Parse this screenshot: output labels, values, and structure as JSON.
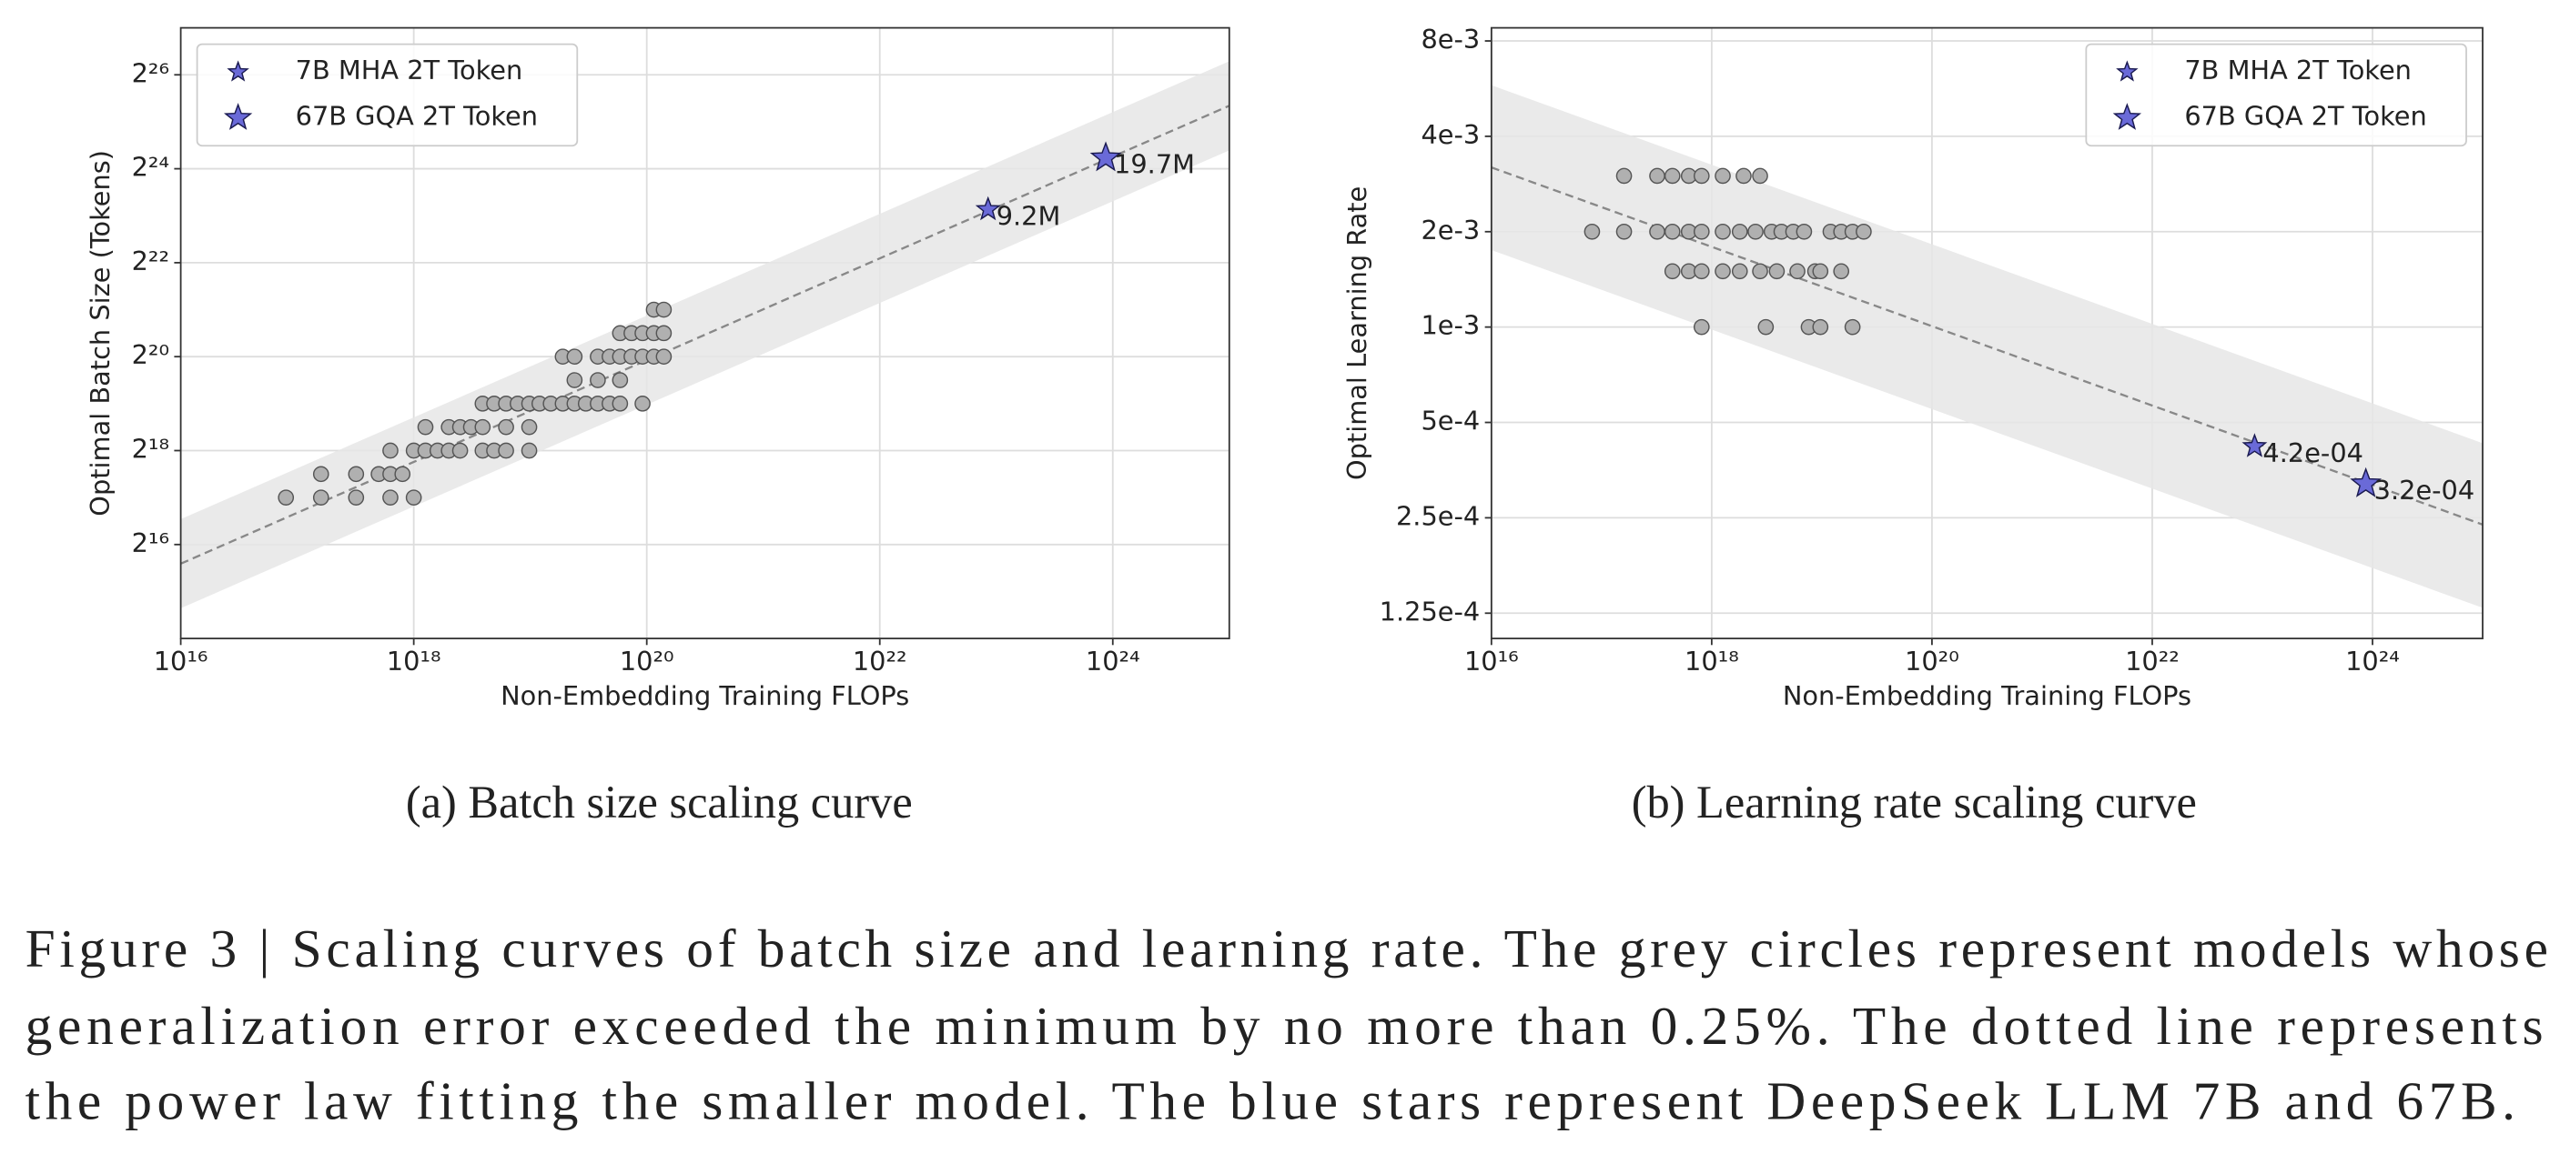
{
  "chart_data": [
    {
      "type": "scatter",
      "caption": "(a) Batch size scaling curve",
      "xlabel": "Non-Embedding Training FLOPs",
      "ylabel": "Optimal Batch Size (Tokens)",
      "log_x": true,
      "log_y": true,
      "grid": true,
      "legend": "upper left",
      "xlim": [
        1e+16,
        1e+25
      ],
      "ylim": [
        16384,
        134217728
      ],
      "xticks": [
        {
          "value": 1e+16,
          "label": "10¹⁶"
        },
        {
          "value": 1e+18,
          "label": "10¹⁸"
        },
        {
          "value": 1e+20,
          "label": "10²⁰"
        },
        {
          "value": 1e+22,
          "label": "10²²"
        },
        {
          "value": 1e+24,
          "label": "10²⁴"
        }
      ],
      "yticks": [
        {
          "value": 65536,
          "label": "2¹⁶"
        },
        {
          "value": 262144,
          "label": "2¹⁸"
        },
        {
          "value": 1048576,
          "label": "2²⁰"
        },
        {
          "value": 4194304,
          "label": "2²²"
        },
        {
          "value": 16777216,
          "label": "2²⁴"
        },
        {
          "value": 67108864,
          "label": "2²⁶"
        }
      ],
      "band": {
        "color": "#e6e6e6",
        "x": [
          1e+16,
          1e+25
        ],
        "lower": [
          25600,
          22000000
        ],
        "upper": [
          95300,
          82000000
        ]
      },
      "fit": {
        "color": "#888888",
        "x": [
          1e+16,
          1e+25
        ],
        "values": [
          49400,
          42500000
        ]
      },
      "series": [
        {
          "marker": "circle",
          "color": "#b0b0b0",
          "x": [
            8e+16,
            1.6e+17,
            1.6e+17,
            3.2e+17,
            3.2e+17,
            5e+17,
            6.3e+17,
            6.3e+17,
            8e+17,
            6.3e+17,
            1e+18,
            1e+18,
            1.26e+18,
            1.26e+18,
            1.6e+18,
            2e+18,
            2e+18,
            2.5e+18,
            3.1e+18,
            3.9e+18,
            2.5e+18,
            3.9e+18,
            3.9e+18,
            4.9e+18,
            6.2e+18,
            4.9e+18,
            6.2e+18,
            7.8e+18,
            6.2e+18,
            9.8e+18,
            9.8e+18,
            9.8e+18,
            1.2e+19,
            1.5e+19,
            1.9e+19,
            2.4e+19,
            3e+19,
            3.8e+19,
            4.8e+19,
            5.9e+19,
            9.2e+19,
            1.9e+19,
            2.4e+19,
            3.8e+19,
            4.8e+19,
            5.9e+19,
            7.4e+19,
            9.2e+19,
            1.15e+20,
            1.4e+20,
            2.4e+19,
            3.8e+19,
            5.9e+19,
            5.9e+19,
            7.4e+19,
            9.2e+19,
            1.15e+20,
            1.4e+20,
            1.15e+20,
            1.4e+20
          ],
          "values": [
            131072,
            131072,
            185364,
            131072,
            185364,
            185364,
            131072,
            185364,
            185364,
            262144,
            131072,
            262144,
            370728,
            262144,
            262144,
            262144,
            370728,
            370728,
            370728,
            370728,
            262144,
            524288,
            262144,
            262144,
            262144,
            524288,
            524288,
            524288,
            370728,
            370728,
            524288,
            262144,
            524288,
            524288,
            524288,
            524288,
            524288,
            524288,
            524288,
            524288,
            524288,
            1048576,
            1048576,
            1048576,
            1048576,
            1048576,
            1048576,
            1048576,
            1048576,
            1048576,
            741455,
            741455,
            741455,
            1482910,
            1482910,
            1482910,
            1482910,
            1482910,
            2097152,
            2097152
          ]
        },
        {
          "name": "7B MHA 2T Token",
          "marker": "star",
          "color": "#6a6ad8",
          "x": [
            8.5e+22
          ],
          "values": [
            9200000
          ],
          "value_labels": [
            "9.2M"
          ]
        },
        {
          "name": "67B GQA 2T Token",
          "marker": "star",
          "color": "#6a6ad8",
          "x": [
            8.7e+23
          ],
          "values": [
            19700000
          ],
          "value_labels": [
            "19.7M"
          ]
        }
      ]
    },
    {
      "type": "scatter",
      "caption": "(b) Learning rate scaling curve",
      "xlabel": "Non-Embedding Training FLOPs",
      "ylabel": "Optimal Learning Rate",
      "log_x": true,
      "log_y": true,
      "grid": true,
      "legend": "upper right",
      "xlim": [
        1e+16,
        1e+25
      ],
      "ylim": [
        0.000104,
        0.0088
      ],
      "xticks": [
        {
          "value": 1e+16,
          "label": "10¹⁶"
        },
        {
          "value": 1e+18,
          "label": "10¹⁸"
        },
        {
          "value": 1e+20,
          "label": "10²⁰"
        },
        {
          "value": 1e+22,
          "label": "10²²"
        },
        {
          "value": 1e+24,
          "label": "10²⁴"
        }
      ],
      "yticks": [
        {
          "value": 0.000125,
          "label": "1.25e-4"
        },
        {
          "value": 0.00025,
          "label": "2.5e-4"
        },
        {
          "value": 0.0005,
          "label": "5e-4"
        },
        {
          "value": 0.001,
          "label": "1e-3"
        },
        {
          "value": 0.002,
          "label": "2e-3"
        },
        {
          "value": 0.004,
          "label": "4e-3"
        },
        {
          "value": 0.008,
          "label": "8e-3"
        }
      ],
      "band": {
        "color": "#e6e6e6",
        "x": [
          1e+16,
          1e+25
        ],
        "lower": [
          0.00175,
          0.00013
        ],
        "upper": [
          0.0058,
          0.00043
        ]
      },
      "fit": {
        "color": "#888888",
        "x": [
          1e+16,
          1e+25
        ],
        "values": [
          0.00319,
          0.000238
        ]
      },
      "series": [
        {
          "marker": "circle",
          "color": "#b0b0b0",
          "x": [
            8.2e+16,
            1.6e+17,
            1.6e+17,
            3.2e+17,
            3.2e+17,
            4.4e+17,
            4.4e+17,
            4.4e+17,
            6.2e+17,
            6.2e+17,
            6.2e+17,
            8.1e+17,
            8.1e+17,
            8.1e+17,
            8.1e+17,
            1.26e+18,
            1.26e+18,
            1.26e+18,
            1.8e+18,
            1.8e+18,
            1.95e+18,
            2.75e+18,
            3.1e+18,
            2.5e+18,
            3.5e+18,
            4.3e+18,
            5.5e+18,
            6.9e+18,
            2.75e+18,
            3.9e+18,
            6e+18,
            8.7e+18,
            9.7e+18,
            1.5e+19,
            7.6e+18,
            9.7e+18,
            1.9e+19,
            1.2e+19,
            1.5e+19,
            1.9e+19,
            2.4e+19
          ],
          "values": [
            0.002,
            0.003,
            0.002,
            0.003,
            0.002,
            0.003,
            0.002,
            0.0015,
            0.003,
            0.002,
            0.0015,
            0.003,
            0.002,
            0.0015,
            0.001,
            0.003,
            0.002,
            0.0015,
            0.002,
            0.0015,
            0.003,
            0.003,
            0.001,
            0.002,
            0.002,
            0.002,
            0.002,
            0.002,
            0.0015,
            0.0015,
            0.0015,
            0.0015,
            0.0015,
            0.0015,
            0.001,
            0.001,
            0.001,
            0.002,
            0.002,
            0.002,
            0.002
          ]
        },
        {
          "name": "7B MHA 2T Token",
          "marker": "star",
          "color": "#6a6ad8",
          "x": [
            8.5e+22
          ],
          "values": [
            0.00042
          ],
          "value_labels": [
            "4.2e-04"
          ]
        },
        {
          "name": "67B GQA 2T Token",
          "marker": "star",
          "color": "#6a6ad8",
          "x": [
            8.7e+23
          ],
          "values": [
            0.00032
          ],
          "value_labels": [
            "3.2e-04"
          ]
        }
      ]
    }
  ],
  "figure_caption": [
    "Figure 3 | Scaling curves of batch size and learning rate. The grey circles represent models whose",
    "generalization error exceeded the minimum by no more than 0.25%. The dotted line represents",
    "the power law fitting the smaller model. The blue stars represent DeepSeek LLM 7B and 67B."
  ]
}
